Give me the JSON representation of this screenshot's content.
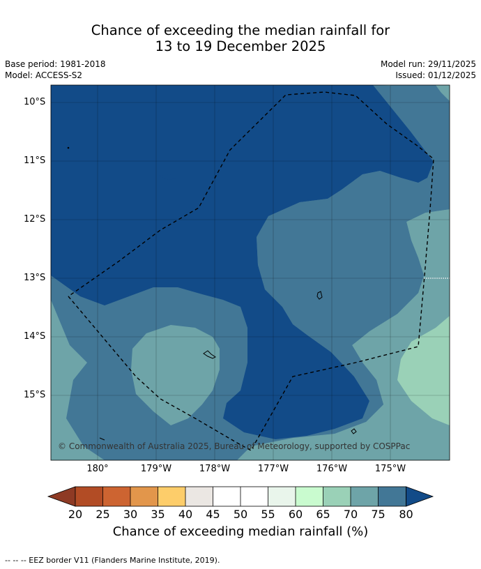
{
  "header": {
    "title_line1": "Chance of exceeding the median rainfall for",
    "title_line2": "13 to 19 December 2025",
    "base_period": "Base period: 1981-2018",
    "model": "Model: ACCESS-S2",
    "model_run": "Model run: 29/11/2025",
    "issued": "Issued: 01/12/2025"
  },
  "map": {
    "lat_labels": [
      "10°S",
      "11°S",
      "12°S",
      "13°S",
      "14°S",
      "15°S"
    ],
    "lon_labels": [
      "180°",
      "179°W",
      "178°W",
      "177°W",
      "176°W",
      "175°W"
    ],
    "copyright": "© Commonwealth of Australia 2025, Bureau of Meteorology, supported by COSPPac",
    "colors": {
      "c75_80": "#124b88",
      "c70_75": "#427796",
      "c65_70": "#6ea4a8",
      "c60_65": "#9ad1b7",
      "coast": "#000000",
      "eez": "#000000"
    }
  },
  "colorbar": {
    "title": "Chance of exceeding median rainfall (%)",
    "ticks": [
      "20",
      "25",
      "30",
      "35",
      "40",
      "45",
      "50",
      "55",
      "60",
      "65",
      "70",
      "75",
      "80"
    ],
    "colors": [
      "#b24c25",
      "#cd6431",
      "#e2964b",
      "#fdcd6a",
      "#ebe7e3",
      "#ffffff",
      "#ffffff",
      "#e9f5eb",
      "#c9fbcf",
      "#9ad1b7",
      "#6ea4a8",
      "#427796"
    ],
    "under_color": "#8e3a24",
    "over_color": "#124b88"
  },
  "footer": {
    "legend_text": "--  --  -- EEZ border V11 (Flanders Marine Institute, 2019)."
  }
}
